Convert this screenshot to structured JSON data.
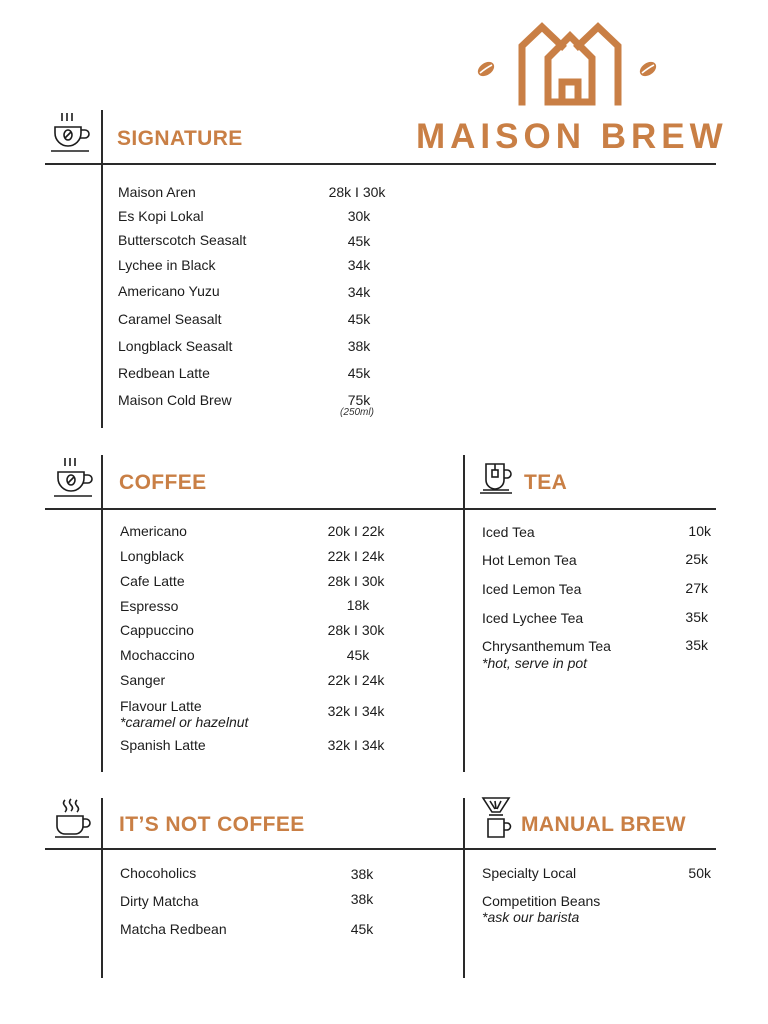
{
  "brand": {
    "name": "MAISON BREW",
    "accent_color": "#c97f45",
    "logo_icon": "house-roof-logo-with-coffee-beans"
  },
  "signature": {
    "title": "SIGNATURE",
    "icon": "coffee-cup-icon",
    "items": [
      {
        "name": "Maison Aren",
        "price": "28k  I  30k"
      },
      {
        "name": "Es Kopi Lokal",
        "price": "30k"
      },
      {
        "name": "Butterscotch Seasalt",
        "price": "45k"
      },
      {
        "name": "Lychee in Black",
        "price": "34k"
      },
      {
        "name": "Americano Yuzu",
        "price": "34k"
      },
      {
        "name": "Caramel Seasalt",
        "price": "45k"
      },
      {
        "name": "Longblack Seasalt",
        "price": "38k"
      },
      {
        "name": "Redbean Latte",
        "price": "45k"
      },
      {
        "name": "Maison Cold Brew",
        "price": "75k",
        "note": "(250ml)"
      }
    ]
  },
  "coffee": {
    "title": "COFFEE",
    "icon": "coffee-cup-icon",
    "items": [
      {
        "name": "Americano",
        "price": "20k  I  22k"
      },
      {
        "name": "Longblack",
        "price": "22k  I  24k"
      },
      {
        "name": "Cafe Latte",
        "price": "28k  I  30k"
      },
      {
        "name": "Espresso",
        "price": "18k"
      },
      {
        "name": "Cappuccino",
        "price": "28k  I  30k"
      },
      {
        "name": "Mochaccino",
        "price": "45k"
      },
      {
        "name": "Sanger",
        "price": "22k  I  24k"
      },
      {
        "name": "Flavour Latte",
        "price": "32k  I  34k",
        "note": "*caramel or hazelnut"
      },
      {
        "name": "Spanish Latte",
        "price": "32k  I  34k"
      }
    ]
  },
  "tea": {
    "title": "TEA",
    "icon": "tea-cup-icon",
    "items": [
      {
        "name": "Iced Tea",
        "price": "10k"
      },
      {
        "name": "Hot Lemon Tea",
        "price": "25k"
      },
      {
        "name": "Iced Lemon Tea",
        "price": "27k"
      },
      {
        "name": "Iced Lychee Tea",
        "price": "35k"
      },
      {
        "name": "Chrysanthemum Tea",
        "price": "35k",
        "note": "*hot, serve in pot"
      }
    ]
  },
  "not_coffee": {
    "title": "IT’S NOT COFFEE",
    "icon": "mug-icon",
    "items": [
      {
        "name": "Chocoholics",
        "price": "38k"
      },
      {
        "name": "Dirty Matcha",
        "price": "38k"
      },
      {
        "name": "Matcha Redbean",
        "price": "45k"
      }
    ]
  },
  "manual_brew": {
    "title": "MANUAL BREW",
    "icon": "pour-over-icon",
    "items": [
      {
        "name": "Specialty Local",
        "price": "50k"
      },
      {
        "name": "Competition Beans",
        "price": "",
        "note": "*ask our barista"
      }
    ]
  }
}
